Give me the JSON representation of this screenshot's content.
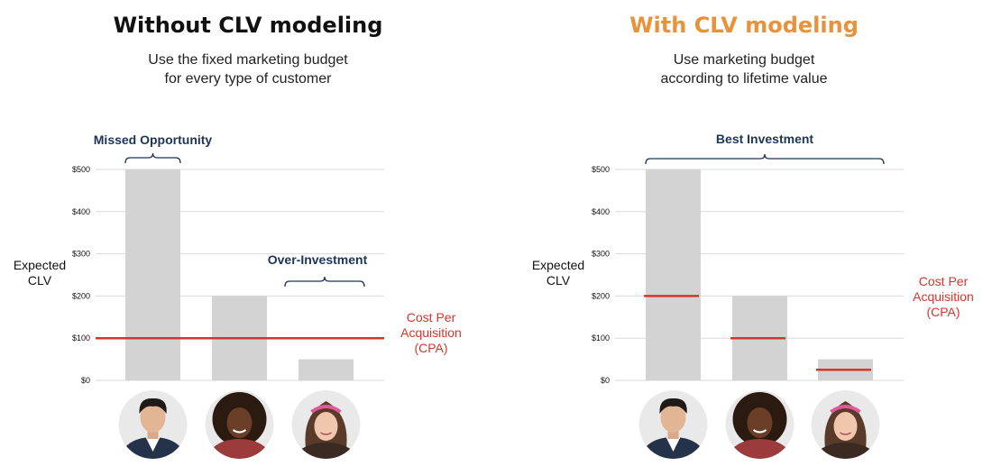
{
  "left_panel": {
    "title": "Without CLV modeling",
    "subtitle_line1": "Use the fixed marketing budget",
    "subtitle_line2": "for every type of customer"
  },
  "right_panel": {
    "title": "With CLV modeling",
    "subtitle_line1": "Use marketing budget",
    "subtitle_line2": "according to lifetime value"
  },
  "colors": {
    "title_left": "#111111",
    "title_right": "#e8923a",
    "bar": "#d3d3d3",
    "cpa": "#d8342a",
    "annotation": "#1c3557",
    "grid": "#d9d9d9"
  },
  "chart_data": [
    {
      "type": "bar",
      "title": "Without CLV modeling",
      "ylabel_lines": [
        "Expected",
        "CLV"
      ],
      "ylim": [
        0,
        500
      ],
      "yticks": [
        0,
        100,
        200,
        300,
        400,
        500
      ],
      "ytick_labels": [
        "$0",
        "$100",
        "$200",
        "$300",
        "$400",
        "$500"
      ],
      "values": [
        500,
        200,
        50
      ],
      "cpa": 100,
      "cpa_label_lines": [
        "Cost Per",
        "Acquisition",
        "(CPA)"
      ],
      "annotations": [
        {
          "text": "Missed Opportunity",
          "bars": [
            0,
            0
          ]
        },
        {
          "text": "Over-Investment",
          "bars": [
            2,
            2
          ]
        }
      ],
      "customers": [
        "man-avatar-icon",
        "woman-curly-hair-avatar-icon",
        "girl-headband-avatar-icon"
      ]
    },
    {
      "type": "bar",
      "title": "With CLV modeling",
      "ylabel_lines": [
        "Expected",
        "CLV"
      ],
      "ylim": [
        0,
        500
      ],
      "yticks": [
        0,
        100,
        200,
        300,
        400,
        500
      ],
      "ytick_labels": [
        "$0",
        "$100",
        "$200",
        "$300",
        "$400",
        "$500"
      ],
      "values": [
        500,
        200,
        50
      ],
      "cpa_per_bar": [
        200,
        100,
        25
      ],
      "cpa_label_lines": [
        "Cost Per",
        "Acquisition",
        "(CPA)"
      ],
      "annotations": [
        {
          "text": "Best Investment",
          "bars": [
            0,
            2
          ]
        }
      ],
      "customers": [
        "man-avatar-icon",
        "woman-curly-hair-avatar-icon",
        "girl-headband-avatar-icon"
      ]
    }
  ]
}
